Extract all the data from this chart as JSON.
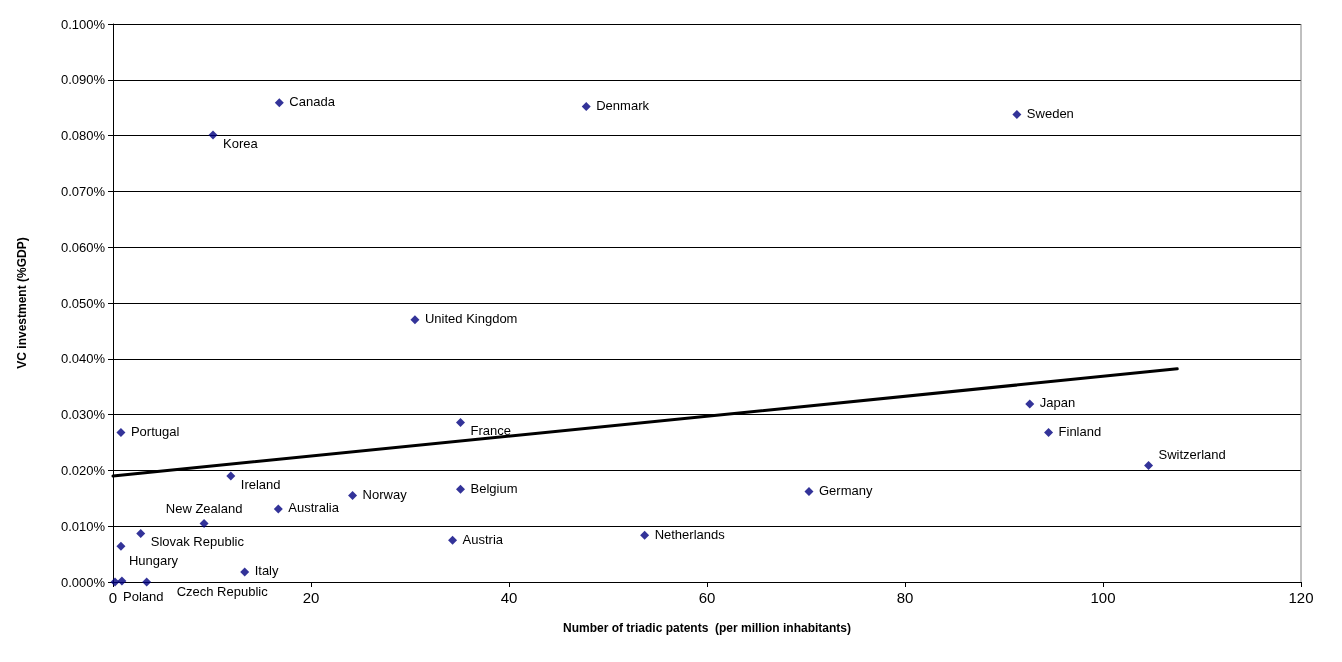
{
  "chart_data": {
    "type": "scatter",
    "xlabel": "Number of triadic patents  (per million inhabitants)",
    "ylabel": "VC investment (%GDP)",
    "xlim": [
      0,
      120
    ],
    "xticks": [
      0,
      20,
      40,
      60,
      80,
      100,
      120
    ],
    "ylim": [
      0,
      0.1
    ],
    "yticks": [
      {
        "value": 0,
        "label": "0.000%"
      },
      {
        "value": 0.01,
        "label": "0.010%"
      },
      {
        "value": 0.02,
        "label": "0.020%"
      },
      {
        "value": 0.03,
        "label": "0.030%"
      },
      {
        "value": 0.04,
        "label": "0.040%"
      },
      {
        "value": 0.05,
        "label": "0.050%"
      },
      {
        "value": 0.06,
        "label": "0.060%"
      },
      {
        "value": 0.07,
        "label": "0.070%"
      },
      {
        "value": 0.08,
        "label": "0.080%"
      },
      {
        "value": 0.09,
        "label": "0.090%"
      },
      {
        "value": 0.1,
        "label": "0.100%"
      }
    ],
    "grid": "y",
    "marker": "diamond",
    "series": [
      {
        "color": "#000080",
        "x": [
          16.8,
          47.8,
          91.3,
          10.1,
          30.5,
          0.8,
          35.1,
          92.6,
          94.5,
          104.6,
          11.9,
          35.1,
          24.2,
          16.7,
          70.3,
          9.2,
          2.8,
          0.8,
          0.2,
          3.4,
          0.9,
          34.3,
          53.7,
          13.3
        ],
        "values": [
          0.0859,
          0.0852,
          0.0838,
          0.0801,
          0.047,
          0.0268,
          0.0286,
          0.0319,
          0.0268,
          0.0209,
          0.019,
          0.0166,
          0.0155,
          0.0131,
          0.0162,
          0.0105,
          0.0087,
          0.0064,
          0.0,
          0.0,
          0.0002,
          0.0075,
          0.0084,
          0.0018
        ]
      },
      {
        "type": "line",
        "color": "#000000",
        "x": [
          0,
          107.5
        ],
        "values": [
          0.019,
          0.0382
        ],
        "marker": "none"
      }
    ],
    "annotations": [
      {
        "text": "Canada",
        "x": 16.8,
        "y": 0.0859
      },
      {
        "text": "Denmark",
        "x": 47.8,
        "y": 0.0852
      },
      {
        "text": "Sweden",
        "x": 91.3,
        "y": 0.0838
      },
      {
        "text": "Korea",
        "x": 10.1,
        "y": 0.0801
      },
      {
        "text": "United Kingdom",
        "x": 30.5,
        "y": 0.047
      },
      {
        "text": "Portugal",
        "x": 0.8,
        "y": 0.0268
      },
      {
        "text": "France",
        "x": 35.1,
        "y": 0.0286
      },
      {
        "text": "Japan",
        "x": 92.6,
        "y": 0.0319
      },
      {
        "text": "Finland",
        "x": 94.5,
        "y": 0.0268
      },
      {
        "text": "Switzerland",
        "x": 104.6,
        "y": 0.0209
      },
      {
        "text": "Ireland",
        "x": 11.9,
        "y": 0.019
      },
      {
        "text": "Belgium",
        "x": 35.1,
        "y": 0.0166
      },
      {
        "text": "Norway",
        "x": 24.2,
        "y": 0.0155
      },
      {
        "text": "Australia",
        "x": 16.7,
        "y": 0.0131
      },
      {
        "text": "Germany",
        "x": 70.3,
        "y": 0.0162
      },
      {
        "text": "New Zealand",
        "x": 9.2,
        "y": 0.0105
      },
      {
        "text": "Slovak Republic",
        "x": 2.8,
        "y": 0.0087
      },
      {
        "text": "Hungary",
        "x": 0.8,
        "y": 0.0064
      },
      {
        "text": "Poland",
        "x": 0.2,
        "y": 0.0
      },
      {
        "text": "Czech Republic",
        "x": 3.4,
        "y": 0.0
      },
      {
        "text": "Austria",
        "x": 34.3,
        "y": 0.0075
      },
      {
        "text": "Netherlands",
        "x": 53.7,
        "y": 0.0084
      },
      {
        "text": "Italy",
        "x": 13.3,
        "y": 0.0018
      }
    ]
  }
}
